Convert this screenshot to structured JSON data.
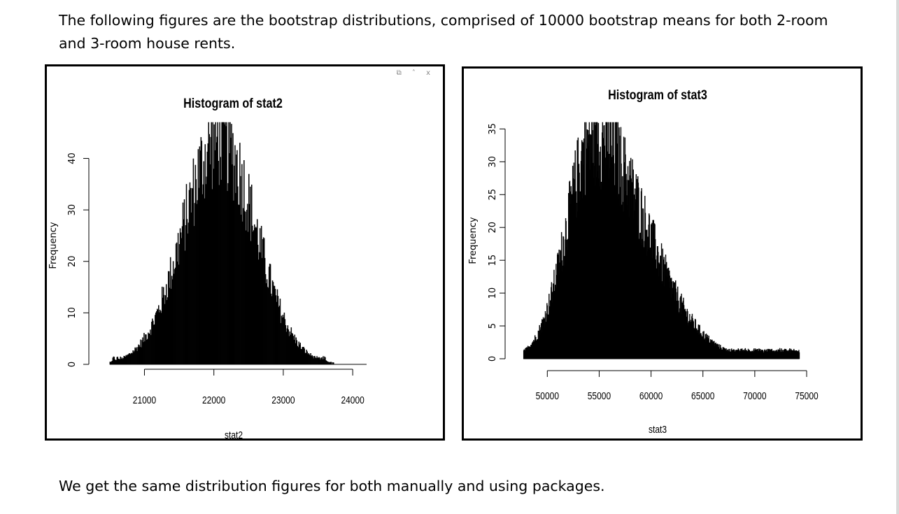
{
  "intro_text": "The following figures are the bootstrap distributions, comprised of 10000 bootstrap means for both 2-room and 3-room house rents.",
  "conclusion_text": "We get the same distribution figures for both manually and using packages.",
  "window_controls": "⧉ ˄ x",
  "chart_data": [
    {
      "type": "bar",
      "title": "Histogram of stat2",
      "xlabel": "stat2",
      "ylabel": "Frequency",
      "xlim": [
        20300,
        24200
      ],
      "ylim": [
        0,
        47
      ],
      "x_ticks": [
        21000,
        22000,
        23000,
        24000
      ],
      "y_ticks": [
        0,
        10,
        20,
        30,
        40
      ],
      "bins": {
        "start": 20500,
        "end": 24200,
        "width": 10,
        "shape": "normal",
        "mean": 22080,
        "sd": 520,
        "peak_frequency": 47
      },
      "bar_color": "#000000"
    },
    {
      "type": "bar",
      "title": "Histogram of stat3",
      "xlabel": "stat3",
      "ylabel": "Frequency",
      "xlim": [
        46000,
        75000
      ],
      "ylim": [
        0,
        36
      ],
      "x_ticks": [
        50000,
        55000,
        60000,
        65000,
        70000,
        75000
      ],
      "y_ticks": [
        0,
        5,
        10,
        15,
        20,
        25,
        30,
        35
      ],
      "bins": {
        "start": 47700,
        "end": 74300,
        "width": 40,
        "shape": "right-skewed",
        "mode": 54500,
        "sd_left": 2600,
        "sd_right": 5000,
        "peak_frequency": 36
      },
      "bar_color": "#000000"
    }
  ]
}
